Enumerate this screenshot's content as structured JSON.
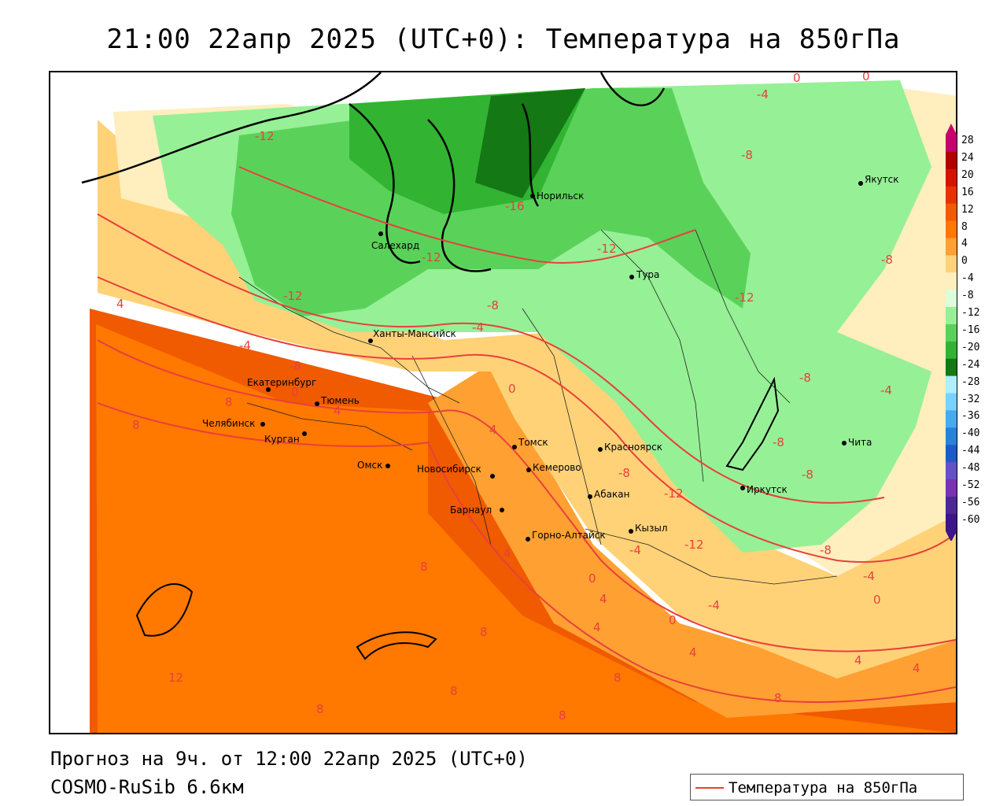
{
  "title": "21:00 22апр 2025 (UTC+0): Температура на 850гПа",
  "footer": {
    "forecast": "Прогноз на 9ч. от 12:00 22апр 2025 (UTC+0)",
    "model": "COSMO-RuSib 6.6км"
  },
  "legend": {
    "label": "Температура на 850гПа",
    "color": "#e8403c"
  },
  "colorbar": {
    "ticks": [
      "28",
      "24",
      "20",
      "16",
      "12",
      "8",
      "4",
      "0",
      "-4",
      "-8",
      "-12",
      "-16",
      "-20",
      "-24",
      "-28",
      "-32",
      "-36",
      "-40",
      "-44",
      "-48",
      "-52",
      "-56",
      "-60"
    ],
    "colors": [
      "#c8006e",
      "#b40000",
      "#d21400",
      "#e63200",
      "#f05a00",
      "#ff7800",
      "#ffa032",
      "#ffd278",
      "#ffeebe",
      "#dcffdc",
      "#96f096",
      "#5ad25a",
      "#32b432",
      "#147814",
      "#aaf0ff",
      "#78d2ff",
      "#46aaf0",
      "#2882dc",
      "#1e5ac8",
      "#6450c8",
      "#7832b4",
      "#4b2896",
      "#3c148c"
    ]
  },
  "cities": [
    {
      "name": "Норильск"
    },
    {
      "name": "Якутск"
    },
    {
      "name": "Салехард"
    },
    {
      "name": "Тура"
    },
    {
      "name": "Ханты-Мансийск"
    },
    {
      "name": "Екатеринбург"
    },
    {
      "name": "Тюмень"
    },
    {
      "name": "Челябинск"
    },
    {
      "name": "Курган"
    },
    {
      "name": "Омск"
    },
    {
      "name": "Новосибирск"
    },
    {
      "name": "Томск"
    },
    {
      "name": "Кемерово"
    },
    {
      "name": "Красноярск"
    },
    {
      "name": "Абакан"
    },
    {
      "name": "Барнаул"
    },
    {
      "name": "Горно-Алтайск"
    },
    {
      "name": "Кызыл"
    },
    {
      "name": "Иркутск"
    },
    {
      "name": "Чита"
    }
  ],
  "isotherm_labels": [
    "-12",
    "-16",
    "-12",
    "-12",
    "-12",
    "-8",
    "-4",
    "-4",
    "-8",
    "-8",
    "-4",
    "-12",
    "-8",
    "-12",
    "-8",
    "-8",
    "-8",
    "-8",
    "-12",
    "-8",
    "-4",
    "-4",
    "0",
    "0",
    "0",
    "0",
    "0",
    "0",
    "0",
    "4",
    "4",
    "4",
    "4",
    "4",
    "4",
    "4",
    "4",
    "4",
    "8",
    "8",
    "8",
    "8",
    "8",
    "8",
    "8",
    "8",
    "8",
    "12",
    "-4",
    "-4"
  ]
}
